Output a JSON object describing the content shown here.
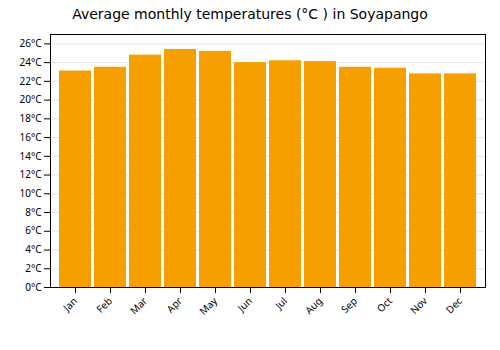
{
  "chart_data": {
    "type": "bar",
    "title": "Average monthly temperatures (°C ) in Soyapango",
    "categories": [
      "Jan",
      "Feb",
      "Mar",
      "Apr",
      "May",
      "Jun",
      "Jul",
      "Aug",
      "Sep",
      "Oct",
      "Nov",
      "Dec"
    ],
    "values": [
      23.1,
      23.5,
      24.8,
      25.4,
      25.2,
      24.0,
      24.2,
      24.1,
      23.5,
      23.4,
      22.8,
      22.8
    ],
    "color": "#F5A000",
    "ylim": [
      0,
      27
    ],
    "yticks": [
      {
        "value": 0,
        "label": "0°C"
      },
      {
        "value": 2,
        "label": "2°C"
      },
      {
        "value": 4,
        "label": "4°C"
      },
      {
        "value": 6,
        "label": "6°C"
      },
      {
        "value": 8,
        "label": "8°C"
      },
      {
        "value": 10,
        "label": "10°C"
      },
      {
        "value": 12,
        "label": "12°C"
      },
      {
        "value": 14,
        "label": "14°C"
      },
      {
        "value": 16,
        "label": "16°C"
      },
      {
        "value": 18,
        "label": "18°C"
      },
      {
        "value": 20,
        "label": "20°C"
      },
      {
        "value": 22,
        "label": "22°C"
      },
      {
        "value": 24,
        "label": "24°C"
      },
      {
        "value": 26,
        "label": "26°C"
      }
    ],
    "grid": true
  }
}
